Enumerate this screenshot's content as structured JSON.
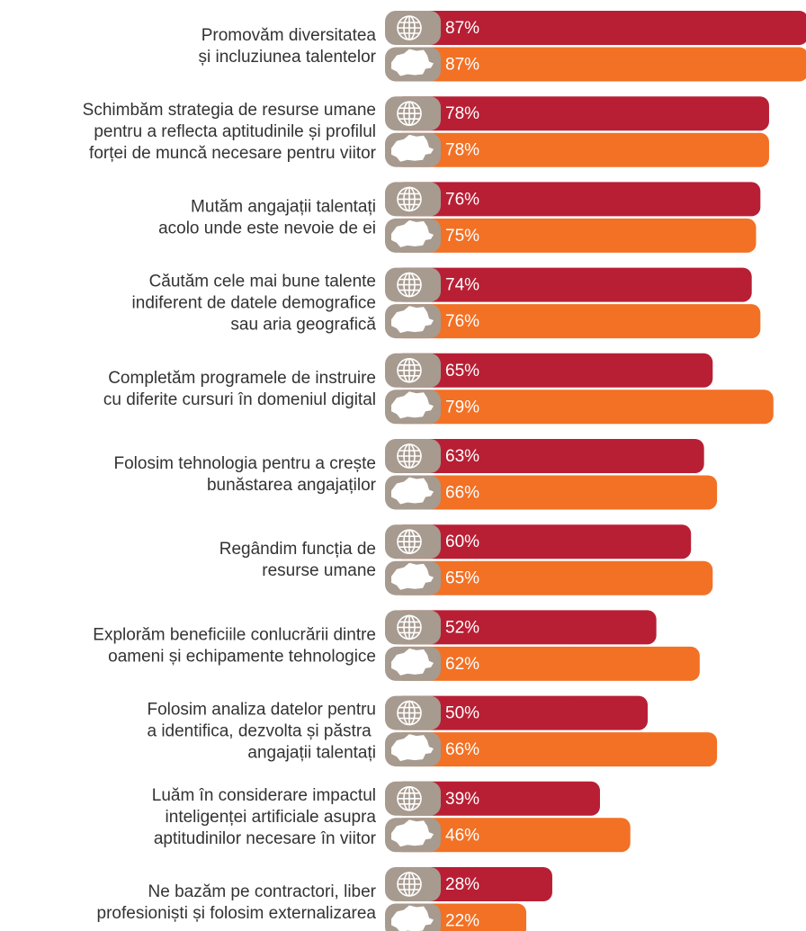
{
  "chart_data": {
    "type": "bar",
    "orientation": "horizontal",
    "categories": [
      [
        "Promovăm diversitatea",
        "și incluziunea talentelor"
      ],
      [
        "Schimbăm strategia de resurse umane",
        "pentru a reflecta aptitudinile și profilul",
        "forței de muncă necesare pentru viitor"
      ],
      [
        "Mutăm angajații talentați",
        "acolo unde este nevoie de ei"
      ],
      [
        "Căutăm cele mai bune talente",
        "indiferent de datele demografice",
        "sau aria geografică"
      ],
      [
        "Completăm programele de instruire",
        "cu diferite cursuri în domeniul digital"
      ],
      [
        "Folosim tehnologia pentru a crește",
        "bunăstarea angajaților"
      ],
      [
        "Regândim funcția de",
        "resurse umane"
      ],
      [
        "Explorăm beneficiile conlucrării dintre",
        "oameni și echipamente tehnologice"
      ],
      [
        "Folosim analiza datelor pentru",
        "a identifica, dezvolta și păstra ",
        "angajații talentați"
      ],
      [
        "Luăm în considerare impactul",
        "inteligenței artificiale asupra",
        "aptitudinilor necesare în viitor"
      ],
      [
        "Ne bazăm pe contractori, liber",
        "profesioniști și folosim externalizarea"
      ]
    ],
    "series": [
      {
        "color": "#b81f34",
        "values": [
          87,
          78,
          76,
          74,
          65,
          63,
          60,
          52,
          50,
          39,
          28
        ],
        "value_labels": [
          "87%",
          "78%",
          "76%",
          "74%",
          "65%",
          "63%",
          "60%",
          "52%",
          "50%",
          "39%",
          "28%"
        ]
      },
      {
        "color": "#f27125",
        "values": [
          87,
          78,
          75,
          76,
          79,
          66,
          65,
          62,
          66,
          46,
          22
        ],
        "value_labels": [
          "87%",
          "78%",
          "75%",
          "76%",
          "79%",
          "66%",
          "65%",
          "62%",
          "66%",
          "46%",
          "22%"
        ]
      }
    ]
  }
}
